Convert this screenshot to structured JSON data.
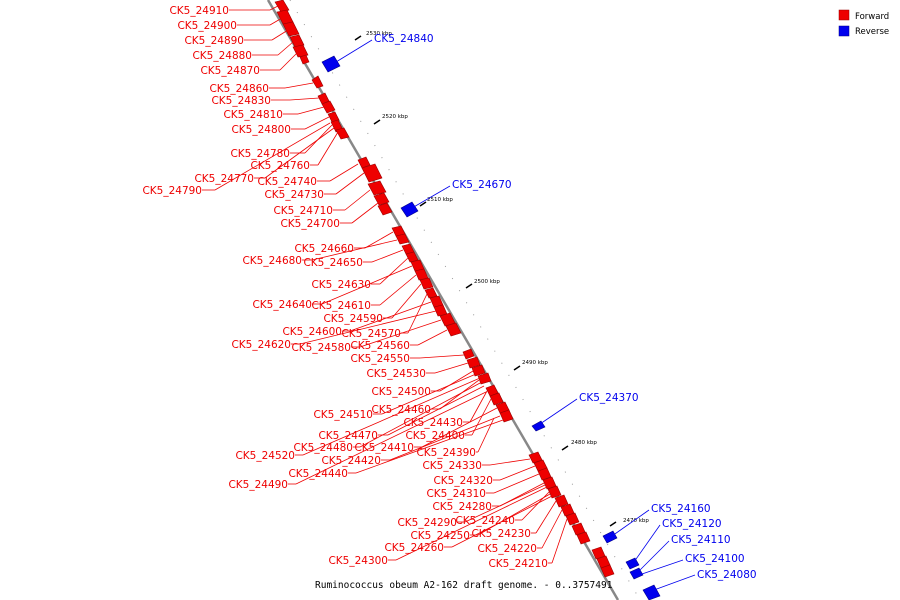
{
  "caption": "Ruminococcus obeum A2-162 draft genome. - 0..3757491",
  "colors": {
    "forward": "#ee0000",
    "reverse": "#0000ee",
    "backbone": "#888888"
  },
  "legend": [
    {
      "label": "Forward",
      "color": "#ee0000"
    },
    {
      "label": "Reverse",
      "color": "#0000ee"
    }
  ],
  "kbp_ticks": [
    "2530 kbp",
    "2520 kbp",
    "2510 kbp",
    "2500 kbp",
    "2490 kbp",
    "2480 kbp",
    "2470 kbp"
  ],
  "forward_genes": [
    "CK5_24910",
    "CK5_24900",
    "CK5_24890",
    "CK5_24880",
    "CK5_24870",
    "CK5_24860",
    "CK5_24830",
    "CK5_24810",
    "CK5_24800",
    "CK5_24780",
    "CK5_24760",
    "CK5_24770",
    "CK5_24740",
    "CK5_24790",
    "CK5_24730",
    "CK5_24710",
    "CK5_24700",
    "CK5_24660",
    "CK5_24680",
    "CK5_24650",
    "CK5_24630",
    "CK5_24640",
    "CK5_24610",
    "CK5_24590",
    "CK5_24570",
    "CK5_24600",
    "CK5_24620",
    "CK5_24580",
    "CK5_24560",
    "CK5_24550",
    "CK5_24530",
    "CK5_24500",
    "CK5_24460",
    "CK5_24510",
    "CK5_24430",
    "CK5_24470",
    "CK5_24400",
    "CK5_24480",
    "CK5_24410",
    "CK5_24520",
    "CK5_24420",
    "CK5_24390",
    "CK5_24440",
    "CK5_24330",
    "CK5_24490",
    "CK5_24320",
    "CK5_24310",
    "CK5_24280",
    "CK5_24240",
    "CK5_24290",
    "CK5_24230",
    "CK5_24250",
    "CK5_24260",
    "CK5_24220",
    "CK5_24300",
    "CK5_24210"
  ],
  "reverse_genes": [
    "CK5_24840",
    "CK5_24670",
    "CK5_24370",
    "CK5_24160",
    "CK5_24120",
    "CK5_24110",
    "CK5_24100",
    "CK5_24080"
  ]
}
